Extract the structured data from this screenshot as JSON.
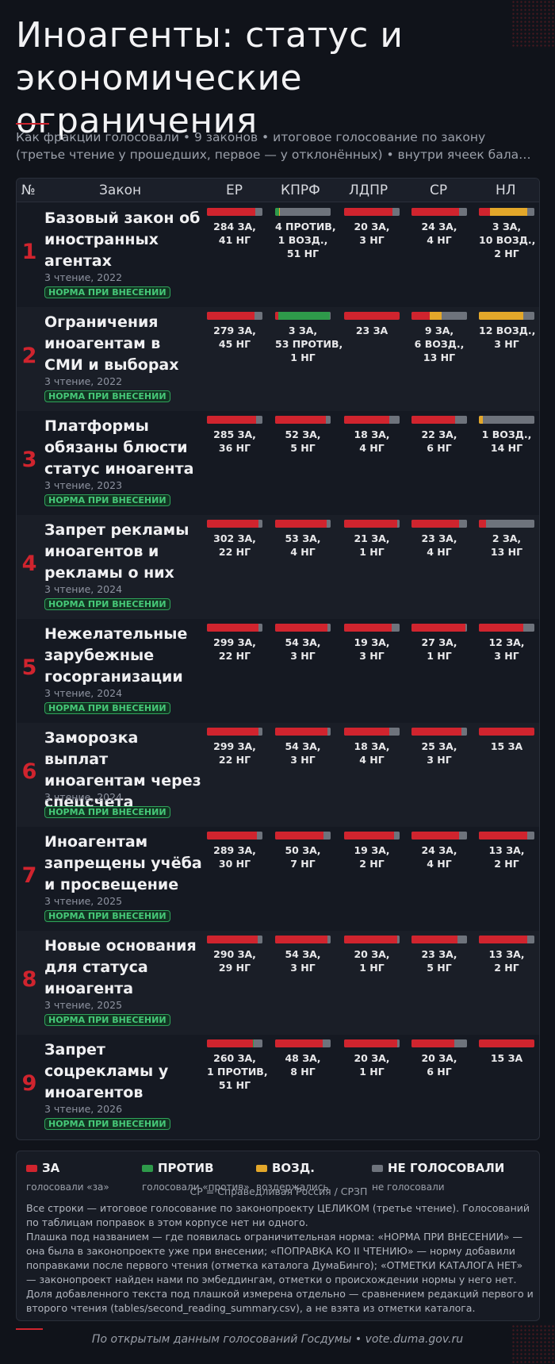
{
  "title": "Иноагенты: статус и экономические ограничения",
  "subtitle_line1": "Как фракции голосовали • 9 законов • итоговое голосование по закону",
  "subtitle_line2": "(третье чтение у прошедших, первое — у отклонённых) • внутри ячеек бала…",
  "columns": {
    "num": "№",
    "law": "Закон",
    "er": "ЕР",
    "kprf": "КПРФ",
    "ldpr": "ЛДПР",
    "sr": "СР",
    "nl": "НЛ"
  },
  "colors": {
    "za": "#d0242e",
    "protiv": "#2e9a4a",
    "vozd": "#e3a72a",
    "ng": "#6e737c",
    "accent": "#d0242e",
    "badge": "#46c878"
  },
  "laws": [
    {
      "num": "1",
      "name": "Базовый закон об иностранных агентах",
      "meta": "3 чтение, 2022",
      "badge": "НОРМА ПРИ ВНЕСЕНИИ",
      "cells": [
        {
          "bar": {
            "za": 284,
            "protiv": 0,
            "vozd": 0,
            "ng": 41
          },
          "lines": [
            "284 ЗА,",
            "41 НГ"
          ]
        },
        {
          "bar": {
            "za": 0,
            "protiv": 4,
            "vozd": 1,
            "ng": 51
          },
          "lines": [
            "4 ПРОТИВ,",
            "1 ВОЗД.,",
            "51 НГ"
          ]
        },
        {
          "bar": {
            "za": 20,
            "protiv": 0,
            "vozd": 0,
            "ng": 3
          },
          "lines": [
            "20 ЗА,",
            "3 НГ"
          ]
        },
        {
          "bar": {
            "za": 24,
            "protiv": 0,
            "vozd": 0,
            "ng": 4
          },
          "lines": [
            "24 ЗА,",
            "4 НГ"
          ]
        },
        {
          "bar": {
            "za": 3,
            "protiv": 0,
            "vozd": 10,
            "ng": 2
          },
          "lines": [
            "3 ЗА,",
            "10 ВОЗД.,",
            "2 НГ"
          ]
        }
      ]
    },
    {
      "num": "2",
      "name": "Ограничения иноагентам в СМИ и выборах",
      "meta": "3 чтение, 2022",
      "badge": "НОРМА ПРИ ВНЕСЕНИИ",
      "cells": [
        {
          "bar": {
            "za": 279,
            "protiv": 0,
            "vozd": 0,
            "ng": 45
          },
          "lines": [
            "279 ЗА,",
            "45 НГ"
          ]
        },
        {
          "bar": {
            "za": 3,
            "protiv": 53,
            "vozd": 0,
            "ng": 1
          },
          "lines": [
            "3 ЗА,",
            "53 ПРОТИВ,",
            "1 НГ"
          ]
        },
        {
          "bar": {
            "za": 23,
            "protiv": 0,
            "vozd": 0,
            "ng": 0
          },
          "lines": [
            "23 ЗА"
          ]
        },
        {
          "bar": {
            "za": 9,
            "protiv": 0,
            "vozd": 6,
            "ng": 13
          },
          "lines": [
            "9 ЗА,",
            "6 ВОЗД.,",
            "13 НГ"
          ]
        },
        {
          "bar": {
            "za": 0,
            "protiv": 0,
            "vozd": 12,
            "ng": 3
          },
          "lines": [
            "12 ВОЗД.,",
            "3 НГ"
          ]
        }
      ]
    },
    {
      "num": "3",
      "name": "Платформы обязаны блюсти статус иноагента",
      "meta": "3 чтение, 2023",
      "badge": "НОРМА ПРИ ВНЕСЕНИИ",
      "cells": [
        {
          "bar": {
            "za": 285,
            "protiv": 0,
            "vozd": 0,
            "ng": 36
          },
          "lines": [
            "285 ЗА,",
            "36 НГ"
          ]
        },
        {
          "bar": {
            "za": 52,
            "protiv": 0,
            "vozd": 0,
            "ng": 5
          },
          "lines": [
            "52 ЗА,",
            "5 НГ"
          ]
        },
        {
          "bar": {
            "za": 18,
            "protiv": 0,
            "vozd": 0,
            "ng": 4
          },
          "lines": [
            "18 ЗА,",
            "4 НГ"
          ]
        },
        {
          "bar": {
            "za": 22,
            "protiv": 0,
            "vozd": 0,
            "ng": 6
          },
          "lines": [
            "22 ЗА,",
            "6 НГ"
          ]
        },
        {
          "bar": {
            "za": 0,
            "protiv": 0,
            "vozd": 1,
            "ng": 14
          },
          "lines": [
            "1 ВОЗД.,",
            "14 НГ"
          ]
        }
      ]
    },
    {
      "num": "4",
      "name": "Запрет рекламы иноагентов и рекламы о них",
      "meta": "3 чтение, 2024",
      "badge": "НОРМА ПРИ ВНЕСЕНИИ",
      "cells": [
        {
          "bar": {
            "za": 302,
            "protiv": 0,
            "vozd": 0,
            "ng": 22
          },
          "lines": [
            "302 ЗА,",
            "22 НГ"
          ]
        },
        {
          "bar": {
            "za": 53,
            "protiv": 0,
            "vozd": 0,
            "ng": 4
          },
          "lines": [
            "53 ЗА,",
            "4 НГ"
          ]
        },
        {
          "bar": {
            "za": 21,
            "protiv": 0,
            "vozd": 0,
            "ng": 1
          },
          "lines": [
            "21 ЗА,",
            "1 НГ"
          ]
        },
        {
          "bar": {
            "za": 23,
            "protiv": 0,
            "vozd": 0,
            "ng": 4
          },
          "lines": [
            "23 ЗА,",
            "4 НГ"
          ]
        },
        {
          "bar": {
            "za": 2,
            "protiv": 0,
            "vozd": 0,
            "ng": 13
          },
          "lines": [
            "2 ЗА,",
            "13 НГ"
          ]
        }
      ]
    },
    {
      "num": "5",
      "name": "Нежелательные зарубежные госорганизации",
      "meta": "3 чтение, 2024",
      "badge": "НОРМА ПРИ ВНЕСЕНИИ",
      "cells": [
        {
          "bar": {
            "za": 299,
            "protiv": 0,
            "vozd": 0,
            "ng": 22
          },
          "lines": [
            "299 ЗА,",
            "22 НГ"
          ]
        },
        {
          "bar": {
            "za": 54,
            "protiv": 0,
            "vozd": 0,
            "ng": 3
          },
          "lines": [
            "54 ЗА,",
            "3 НГ"
          ]
        },
        {
          "bar": {
            "za": 19,
            "protiv": 0,
            "vozd": 0,
            "ng": 3
          },
          "lines": [
            "19 ЗА,",
            "3 НГ"
          ]
        },
        {
          "bar": {
            "za": 27,
            "protiv": 0,
            "vozd": 0,
            "ng": 1
          },
          "lines": [
            "27 ЗА,",
            "1 НГ"
          ]
        },
        {
          "bar": {
            "za": 12,
            "protiv": 0,
            "vozd": 0,
            "ng": 3
          },
          "lines": [
            "12 ЗА,",
            "3 НГ"
          ]
        }
      ]
    },
    {
      "num": "6",
      "name": "Заморозка выплат иноагентам через спецсчета",
      "meta": "3 чтение, 2024",
      "badge": "НОРМА ПРИ ВНЕСЕНИИ",
      "cells": [
        {
          "bar": {
            "za": 299,
            "protiv": 0,
            "vozd": 0,
            "ng": 22
          },
          "lines": [
            "299 ЗА,",
            "22 НГ"
          ]
        },
        {
          "bar": {
            "za": 54,
            "protiv": 0,
            "vozd": 0,
            "ng": 3
          },
          "lines": [
            "54 ЗА,",
            "3 НГ"
          ]
        },
        {
          "bar": {
            "za": 18,
            "protiv": 0,
            "vozd": 0,
            "ng": 4
          },
          "lines": [
            "18 ЗА,",
            "4 НГ"
          ]
        },
        {
          "bar": {
            "za": 25,
            "protiv": 0,
            "vozd": 0,
            "ng": 3
          },
          "lines": [
            "25 ЗА,",
            "3 НГ"
          ]
        },
        {
          "bar": {
            "za": 15,
            "protiv": 0,
            "vozd": 0,
            "ng": 0
          },
          "lines": [
            "15 ЗА"
          ]
        }
      ]
    },
    {
      "num": "7",
      "name": "Иноагентам запрещены учёба и просвещение",
      "meta": "3 чтение, 2025",
      "badge": "НОРМА ПРИ ВНЕСЕНИИ",
      "cells": [
        {
          "bar": {
            "za": 289,
            "protiv": 0,
            "vozd": 0,
            "ng": 30
          },
          "lines": [
            "289 ЗА,",
            "30 НГ"
          ]
        },
        {
          "bar": {
            "za": 50,
            "protiv": 0,
            "vozd": 0,
            "ng": 7
          },
          "lines": [
            "50 ЗА,",
            "7 НГ"
          ]
        },
        {
          "bar": {
            "za": 19,
            "protiv": 0,
            "vozd": 0,
            "ng": 2
          },
          "lines": [
            "19 ЗА,",
            "2 НГ"
          ]
        },
        {
          "bar": {
            "za": 24,
            "protiv": 0,
            "vozd": 0,
            "ng": 4
          },
          "lines": [
            "24 ЗА,",
            "4 НГ"
          ]
        },
        {
          "bar": {
            "za": 13,
            "protiv": 0,
            "vozd": 0,
            "ng": 2
          },
          "lines": [
            "13 ЗА,",
            "2 НГ"
          ]
        }
      ]
    },
    {
      "num": "8",
      "name": "Новые основания для статуса иноагента",
      "meta": "3 чтение, 2025",
      "badge": "НОРМА ПРИ ВНЕСЕНИИ",
      "cells": [
        {
          "bar": {
            "za": 290,
            "protiv": 0,
            "vozd": 0,
            "ng": 29
          },
          "lines": [
            "290 ЗА,",
            "29 НГ"
          ]
        },
        {
          "bar": {
            "za": 54,
            "protiv": 0,
            "vozd": 0,
            "ng": 3
          },
          "lines": [
            "54 ЗА,",
            "3 НГ"
          ]
        },
        {
          "bar": {
            "za": 20,
            "protiv": 0,
            "vozd": 0,
            "ng": 1
          },
          "lines": [
            "20 ЗА,",
            "1 НГ"
          ]
        },
        {
          "bar": {
            "za": 23,
            "protiv": 0,
            "vozd": 0,
            "ng": 5
          },
          "lines": [
            "23 ЗА,",
            "5 НГ"
          ]
        },
        {
          "bar": {
            "za": 13,
            "protiv": 0,
            "vozd": 0,
            "ng": 2
          },
          "lines": [
            "13 ЗА,",
            "2 НГ"
          ]
        }
      ]
    },
    {
      "num": "9",
      "name": "Запрет соцрекламы у иноагентов",
      "meta": "3 чтение, 2026",
      "badge": "НОРМА ПРИ ВНЕСЕНИИ",
      "cells": [
        {
          "bar": {
            "za": 260,
            "protiv": 1,
            "vozd": 0,
            "ng": 51
          },
          "lines": [
            "260 ЗА,",
            "1 ПРОТИВ,",
            "51 НГ"
          ]
        },
        {
          "bar": {
            "za": 48,
            "protiv": 0,
            "vozd": 0,
            "ng": 8
          },
          "lines": [
            "48 ЗА,",
            "8 НГ"
          ]
        },
        {
          "bar": {
            "za": 20,
            "protiv": 0,
            "vozd": 0,
            "ng": 1
          },
          "lines": [
            "20 ЗА,",
            "1 НГ"
          ]
        },
        {
          "bar": {
            "za": 20,
            "protiv": 0,
            "vozd": 0,
            "ng": 6
          },
          "lines": [
            "20 ЗА,",
            "6 НГ"
          ]
        },
        {
          "bar": {
            "za": 15,
            "protiv": 0,
            "vozd": 0,
            "ng": 0
          },
          "lines": [
            "15 ЗА"
          ]
        }
      ]
    }
  ],
  "legend": {
    "items": [
      {
        "key": "za",
        "title": "ЗА",
        "sub": "голосовали «за»"
      },
      {
        "key": "protiv",
        "title": "ПРОТИВ",
        "sub": "голосовали «против»"
      },
      {
        "key": "vozd",
        "title": "ВОЗД.",
        "sub": "воздержались"
      },
      {
        "key": "ng",
        "title": "НЕ ГОЛОСОВАЛИ",
        "sub": "не голосовали"
      }
    ],
    "party_note": "СР = Справедливая Россия / СРЗП",
    "notes": [
      "Все строки — итоговое голосование по законопроекту ЦЕЛИКОМ (третье чтение). Голосований по таблицам поправок в этом корпусе нет ни одного.",
      "Плашка под названием — где появилась ограничительная норма: «НОРМА ПРИ ВНЕСЕНИИ» — она была в законопроекте уже при внесении; «ПОПРАВКА КО II ЧТЕНИЮ» — норму добавили поправками после первого чтения (отметка каталога ДумаБинго); «ОТМЕТКИ КАТАЛОГА НЕТ» — законопроект найден нами по эмбеддингам, отметки о происхождении нормы у него нет.",
      "Доля добавленного текста под плашкой измерена отдельно — сравнением редакций первого и второго чтения (tables/second_reading_summary.csv), а не взята из отметки каталога."
    ]
  },
  "footer": "По открытым данным голосований Госдумы • vote.duma.gov.ru"
}
